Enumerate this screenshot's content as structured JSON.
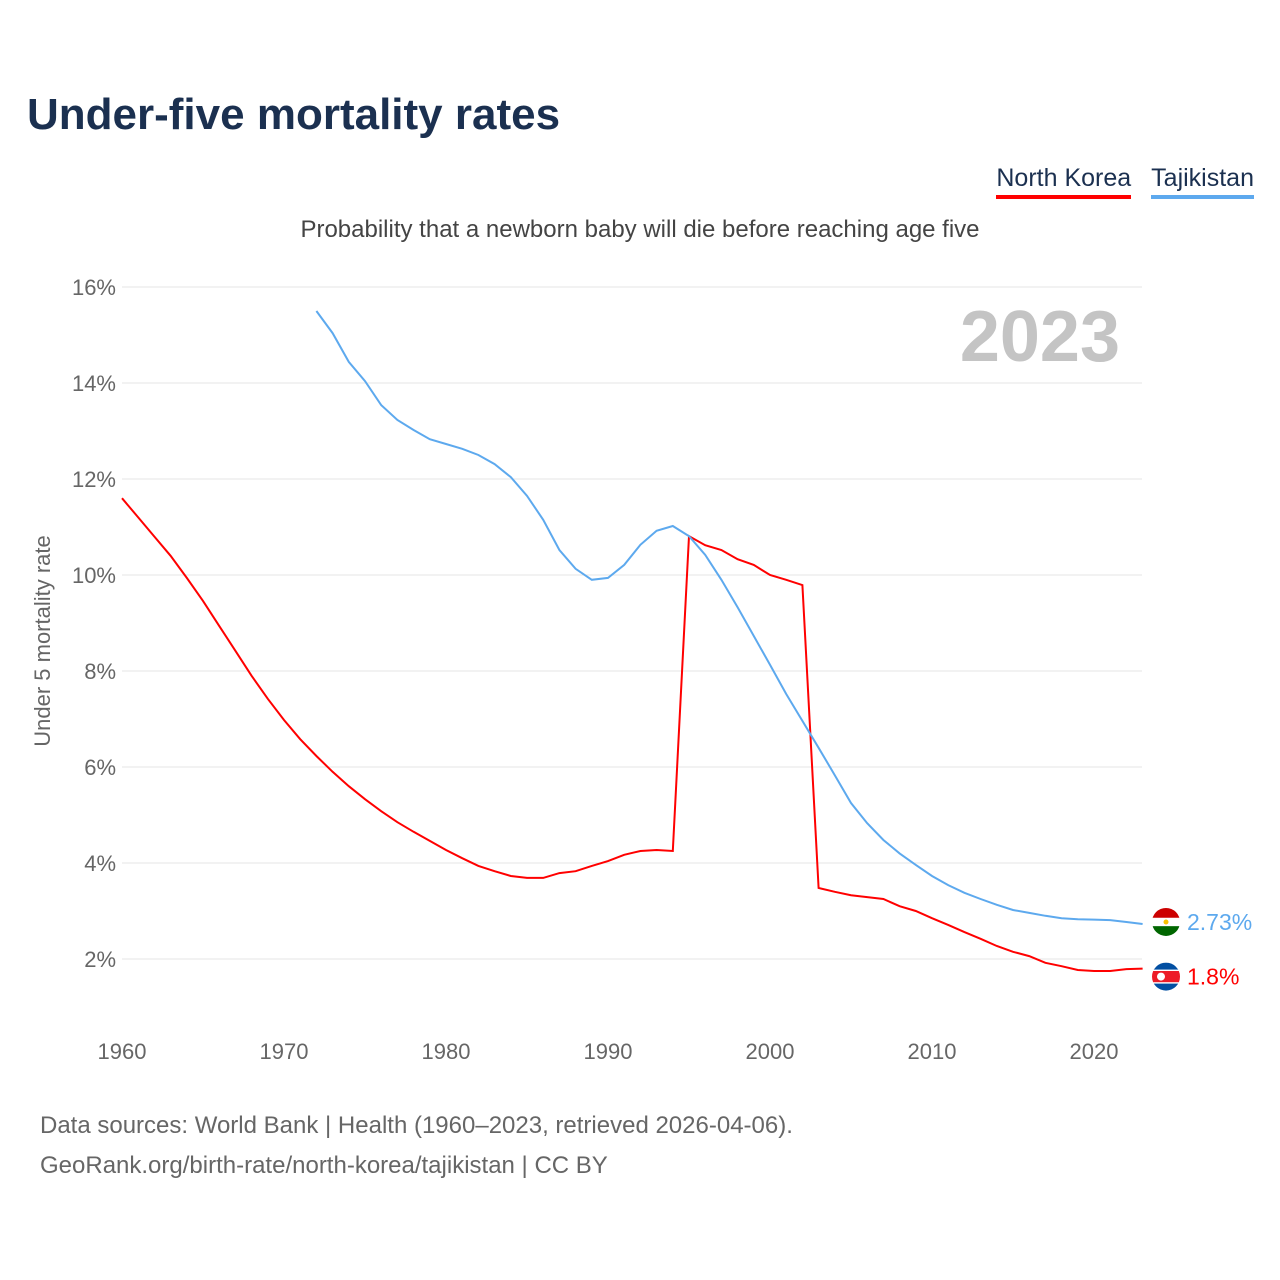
{
  "title": "Under-five mortality rates",
  "chart_data": {
    "type": "line",
    "title": "Under-five mortality rates",
    "subtitle": "Probability that a newborn baby will die before reaching age five",
    "ylabel": "Under 5 mortality rate",
    "xlabel": "",
    "xlim": [
      1960,
      2023
    ],
    "ylim": [
      1,
      16
    ],
    "grid": true,
    "year_label": "2023",
    "x_ticks": [
      "1960",
      "1970",
      "1980",
      "1990",
      "2000",
      "2010",
      "2020"
    ],
    "y_ticks": [
      "2%",
      "4%",
      "6%",
      "8%",
      "10%",
      "12%",
      "14%",
      "16%"
    ],
    "legend": [
      "North Korea",
      "Tajikistan"
    ],
    "legend_placement": "top-right",
    "series": [
      {
        "name": "North Korea",
        "color": "#ff0000",
        "start": 1960,
        "end_label": "1.8%",
        "values": [
          11.6,
          11.2,
          10.8,
          10.4,
          9.94,
          9.46,
          8.94,
          8.42,
          7.9,
          7.42,
          6.98,
          6.58,
          6.23,
          5.9,
          5.6,
          5.33,
          5.08,
          4.85,
          4.65,
          4.46,
          4.27,
          4.1,
          3.94,
          3.83,
          3.73,
          3.69,
          3.69,
          3.79,
          3.83,
          3.94,
          4.04,
          4.17,
          4.25,
          4.27,
          4.25,
          10.81,
          10.62,
          10.52,
          10.33,
          10.21,
          10.0,
          9.9,
          9.79,
          3.48,
          3.4,
          3.33,
          3.29,
          3.25,
          3.1,
          3.0,
          2.85,
          2.71,
          2.56,
          2.42,
          2.27,
          2.15,
          2.06,
          1.92,
          1.85,
          1.77,
          1.75,
          1.75,
          1.79,
          1.8
        ]
      },
      {
        "name": "Tajikistan",
        "color": "#5da9ee",
        "start": 1972,
        "end_label": "2.73%",
        "values": [
          15.5,
          15.04,
          14.44,
          14.04,
          13.54,
          13.23,
          13.02,
          12.83,
          12.73,
          12.63,
          12.5,
          12.31,
          12.04,
          11.65,
          11.15,
          10.52,
          10.13,
          9.9,
          9.94,
          10.21,
          10.63,
          10.92,
          11.02,
          10.81,
          10.42,
          9.9,
          9.33,
          8.73,
          8.13,
          7.52,
          6.96,
          6.4,
          5.83,
          5.25,
          4.83,
          4.48,
          4.2,
          3.96,
          3.73,
          3.54,
          3.38,
          3.25,
          3.13,
          3.02,
          2.96,
          2.9,
          2.85,
          2.83,
          2.82,
          2.81,
          2.77,
          2.73
        ]
      }
    ]
  },
  "footer": {
    "line1": "Data sources: World Bank | Health (1960–2023, retrieved 2026-04-06).",
    "line2": "GeoRank.org/birth-rate/north-korea/tajikistan | CC BY"
  }
}
